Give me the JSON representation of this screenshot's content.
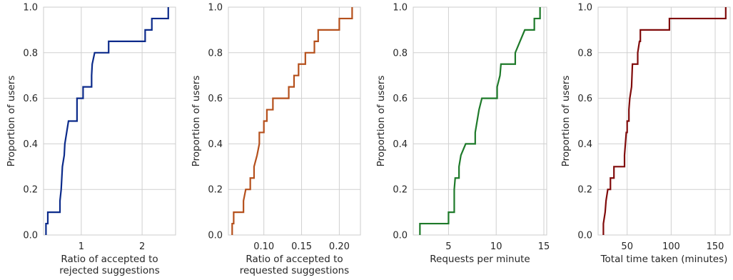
{
  "chart_data": [
    {
      "type": "line",
      "subtype": "ecdf-step",
      "color": "#0b2a8a",
      "xlabel": [
        "Ratio of accepted to",
        "rejected suggestions"
      ],
      "ylabel": "Proportion of users",
      "xlim": [
        0.38,
        2.55
      ],
      "ylim": [
        0,
        1
      ],
      "xticks": [
        1,
        2
      ],
      "yticks": [
        0.0,
        0.2,
        0.4,
        0.6,
        0.8,
        1.0
      ],
      "grid": true,
      "points": [
        [
          0.42,
          0.0
        ],
        [
          0.42,
          0.05
        ],
        [
          0.45,
          0.05
        ],
        [
          0.45,
          0.1
        ],
        [
          0.65,
          0.1
        ],
        [
          0.65,
          0.15
        ],
        [
          0.67,
          0.2
        ],
        [
          0.68,
          0.25
        ],
        [
          0.69,
          0.3
        ],
        [
          0.72,
          0.35
        ],
        [
          0.73,
          0.4
        ],
        [
          0.76,
          0.45
        ],
        [
          0.79,
          0.5
        ],
        [
          0.93,
          0.5
        ],
        [
          0.93,
          0.6
        ],
        [
          1.03,
          0.6
        ],
        [
          1.03,
          0.65
        ],
        [
          1.17,
          0.65
        ],
        [
          1.17,
          0.7
        ],
        [
          1.18,
          0.75
        ],
        [
          1.22,
          0.8
        ],
        [
          1.45,
          0.8
        ],
        [
          1.45,
          0.85
        ],
        [
          2.05,
          0.85
        ],
        [
          2.05,
          0.9
        ],
        [
          2.16,
          0.9
        ],
        [
          2.16,
          0.95
        ],
        [
          2.43,
          0.95
        ],
        [
          2.43,
          1.0
        ]
      ]
    },
    {
      "type": "line",
      "subtype": "ecdf-step",
      "color": "#b5501c",
      "xlabel": [
        "Ratio of accepted to",
        "requested suggestions"
      ],
      "ylabel": "Proportion of users",
      "xlim": [
        0.053,
        0.228
      ],
      "ylim": [
        0,
        1
      ],
      "xticks": [
        0.1,
        0.15,
        0.2
      ],
      "yticks": [
        0.0,
        0.2,
        0.4,
        0.6,
        0.8,
        1.0
      ],
      "grid": true,
      "points": [
        [
          0.058,
          0.0
        ],
        [
          0.058,
          0.05
        ],
        [
          0.06,
          0.05
        ],
        [
          0.06,
          0.1
        ],
        [
          0.073,
          0.1
        ],
        [
          0.073,
          0.15
        ],
        [
          0.076,
          0.2
        ],
        [
          0.082,
          0.2
        ],
        [
          0.082,
          0.25
        ],
        [
          0.087,
          0.25
        ],
        [
          0.087,
          0.3
        ],
        [
          0.091,
          0.35
        ],
        [
          0.094,
          0.4
        ],
        [
          0.094,
          0.45
        ],
        [
          0.1,
          0.45
        ],
        [
          0.1,
          0.5
        ],
        [
          0.104,
          0.5
        ],
        [
          0.104,
          0.55
        ],
        [
          0.112,
          0.55
        ],
        [
          0.112,
          0.6
        ],
        [
          0.133,
          0.6
        ],
        [
          0.133,
          0.65
        ],
        [
          0.14,
          0.65
        ],
        [
          0.14,
          0.7
        ],
        [
          0.146,
          0.7
        ],
        [
          0.146,
          0.75
        ],
        [
          0.155,
          0.75
        ],
        [
          0.155,
          0.8
        ],
        [
          0.167,
          0.8
        ],
        [
          0.167,
          0.85
        ],
        [
          0.172,
          0.85
        ],
        [
          0.172,
          0.9
        ],
        [
          0.2,
          0.9
        ],
        [
          0.2,
          0.95
        ],
        [
          0.217,
          0.95
        ],
        [
          0.217,
          1.0
        ]
      ]
    },
    {
      "type": "line",
      "subtype": "ecdf-step",
      "color": "#1e7a2a",
      "xlabel": [
        "Requests per minute"
      ],
      "ylabel": "Proportion of users",
      "xlim": [
        1.3,
        15.3
      ],
      "ylim": [
        0,
        1
      ],
      "xticks": [
        5,
        10,
        15
      ],
      "yticks": [
        0.0,
        0.2,
        0.4,
        0.6,
        0.8,
        1.0
      ],
      "grid": true,
      "points": [
        [
          2.0,
          0.0
        ],
        [
          2.0,
          0.05
        ],
        [
          5.0,
          0.05
        ],
        [
          5.0,
          0.1
        ],
        [
          5.6,
          0.1
        ],
        [
          5.6,
          0.2
        ],
        [
          5.7,
          0.25
        ],
        [
          6.1,
          0.25
        ],
        [
          6.1,
          0.3
        ],
        [
          6.3,
          0.35
        ],
        [
          6.8,
          0.4
        ],
        [
          7.8,
          0.4
        ],
        [
          7.8,
          0.45
        ],
        [
          8.0,
          0.5
        ],
        [
          8.2,
          0.55
        ],
        [
          8.5,
          0.6
        ],
        [
          10.1,
          0.6
        ],
        [
          10.1,
          0.65
        ],
        [
          10.4,
          0.7
        ],
        [
          10.5,
          0.75
        ],
        [
          12.0,
          0.75
        ],
        [
          12.0,
          0.8
        ],
        [
          12.5,
          0.85
        ],
        [
          13.0,
          0.9
        ],
        [
          14.0,
          0.9
        ],
        [
          14.0,
          0.95
        ],
        [
          14.6,
          0.95
        ],
        [
          14.6,
          1.0
        ]
      ]
    },
    {
      "type": "line",
      "subtype": "ecdf-step",
      "color": "#800b0b",
      "xlabel": [
        "Total time taken (minutes)"
      ],
      "ylabel": "Proportion of users",
      "xlim": [
        17,
        167
      ],
      "ylim": [
        0,
        1
      ],
      "xticks": [
        50,
        100,
        150
      ],
      "yticks": [
        0.0,
        0.2,
        0.4,
        0.6,
        0.8,
        1.0
      ],
      "grid": true,
      "points": [
        [
          23.0,
          0.0
        ],
        [
          23.0,
          0.05
        ],
        [
          25.0,
          0.1
        ],
        [
          26.0,
          0.15
        ],
        [
          28.0,
          0.2
        ],
        [
          31.0,
          0.2
        ],
        [
          31.0,
          0.25
        ],
        [
          35.0,
          0.25
        ],
        [
          35.0,
          0.3
        ],
        [
          47.0,
          0.3
        ],
        [
          47.0,
          0.35
        ],
        [
          48.0,
          0.4
        ],
        [
          49.0,
          0.45
        ],
        [
          50.0,
          0.45
        ],
        [
          50.0,
          0.5
        ],
        [
          52.0,
          0.5
        ],
        [
          52.0,
          0.55
        ],
        [
          53.0,
          0.6
        ],
        [
          55.0,
          0.65
        ],
        [
          56.0,
          0.75
        ],
        [
          62.0,
          0.75
        ],
        [
          62.0,
          0.8
        ],
        [
          64.0,
          0.85
        ],
        [
          65.0,
          0.85
        ],
        [
          65.0,
          0.9
        ],
        [
          98.0,
          0.9
        ],
        [
          98.0,
          0.95
        ],
        [
          162.0,
          0.95
        ],
        [
          162.0,
          1.0
        ]
      ]
    }
  ]
}
